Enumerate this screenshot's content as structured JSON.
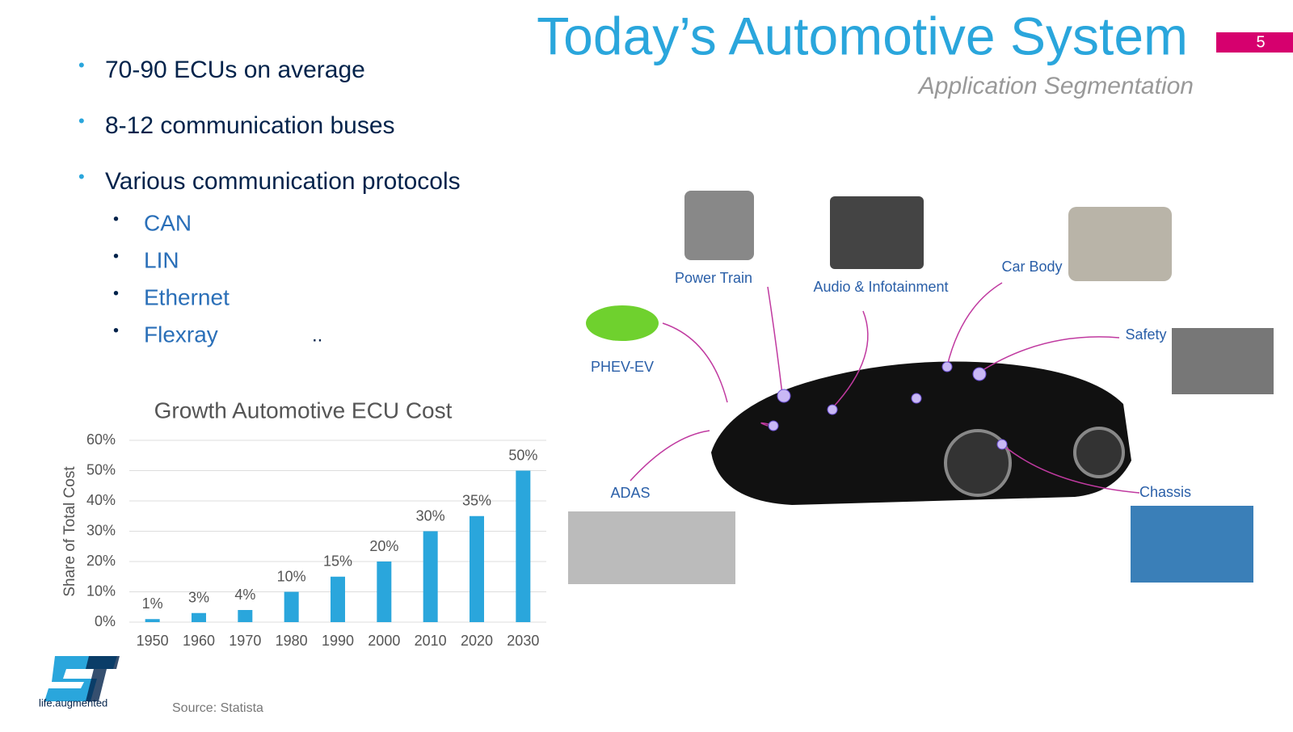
{
  "header": {
    "title": "Today’s Automotive System",
    "subtitle": "Application Segmentation",
    "page_number": "5"
  },
  "bullets": [
    {
      "text": "70-90 ECUs on average"
    },
    {
      "text": "8-12 communication buses"
    },
    {
      "text": "Various communication protocols",
      "sub": [
        "CAN",
        "LIN",
        "Ethernet",
        "Flexray"
      ]
    }
  ],
  "ellipsis": "..",
  "chart_data": {
    "type": "bar",
    "title": "Growth Automotive ECU Cost",
    "y_label": "Share of Total Cost",
    "categories": [
      "1950",
      "1960",
      "1970",
      "1980",
      "1990",
      "2000",
      "2010",
      "2020",
      "2030"
    ],
    "values": [
      1,
      3,
      4,
      10,
      15,
      20,
      30,
      35,
      50
    ],
    "value_labels": [
      "1%",
      "3%",
      "4%",
      "10%",
      "15%",
      "20%",
      "30%",
      "35%",
      "50%"
    ],
    "color": "#2aa6dc",
    "ylim": [
      0,
      60
    ],
    "yticks": [
      {
        "value": 0,
        "label": "0%"
      },
      {
        "value": 10,
        "label": "10%"
      },
      {
        "value": 20,
        "label": "20%"
      },
      {
        "value": 30,
        "label": "30%"
      },
      {
        "value": 40,
        "label": "40%"
      },
      {
        "value": 50,
        "label": "50%"
      },
      {
        "value": 60,
        "label": "60%"
      }
    ],
    "grid": true
  },
  "source": "Source: Statista",
  "logo_tagline": "life.augmented",
  "diagram": {
    "labels": [
      "Power Train",
      "Audio & Infotainment",
      "Car Body",
      "Safety",
      "PHEV-EV",
      "ADAS",
      "Chassis"
    ]
  }
}
